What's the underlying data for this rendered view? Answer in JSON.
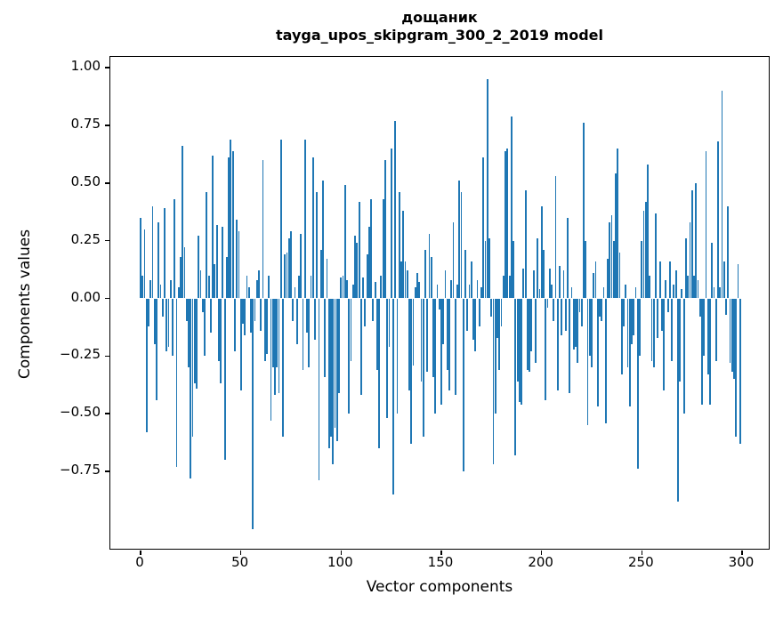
{
  "figure": {
    "title_line1": "дощаник",
    "title_line2": "tayga_upos_skipgram_300_2_2019 model"
  },
  "chart_data": {
    "type": "bar",
    "title": "дощаник — tayga_upos_skipgram_300_2_2019 model",
    "xlabel": "Vector components",
    "ylabel": "Components values",
    "bar_color": "#1f77b4",
    "grid": false,
    "legend": "none",
    "xlim": [
      -15,
      315
    ],
    "ylim": [
      -1.09,
      1.05
    ],
    "xticks": [
      0,
      50,
      100,
      150,
      200,
      250,
      300
    ],
    "yticks": [
      1.0,
      0.75,
      0.5,
      0.25,
      0.0,
      -0.25,
      -0.5,
      -0.75
    ],
    "x_start_index": 0,
    "values": [
      0.35,
      0.1,
      0.3,
      -0.58,
      -0.12,
      0.08,
      0.4,
      -0.2,
      -0.44,
      0.33,
      0.06,
      -0.08,
      0.39,
      -0.23,
      -0.21,
      0.08,
      -0.25,
      0.43,
      -0.73,
      0.05,
      0.18,
      0.66,
      0.22,
      -0.1,
      -0.3,
      -0.78,
      -0.6,
      -0.37,
      -0.39,
      0.27,
      0.12,
      -0.06,
      -0.25,
      0.46,
      0.1,
      -0.15,
      0.62,
      0.15,
      0.32,
      -0.27,
      -0.37,
      0.31,
      -0.7,
      0.18,
      0.61,
      0.69,
      0.64,
      -0.23,
      0.34,
      0.29,
      -0.4,
      -0.11,
      -0.16,
      0.1,
      0.05,
      -0.15,
      -1.0,
      -0.1,
      0.08,
      0.12,
      -0.14,
      0.6,
      -0.27,
      -0.24,
      0.1,
      -0.53,
      -0.3,
      -0.42,
      -0.3,
      -0.41,
      0.69,
      -0.6,
      0.19,
      0.2,
      0.26,
      0.29,
      -0.1,
      0.05,
      -0.2,
      0.1,
      0.28,
      -0.31,
      0.69,
      -0.15,
      -0.3,
      0.1,
      0.61,
      -0.18,
      0.46,
      -0.79,
      0.21,
      0.51,
      -0.34,
      0.17,
      -0.65,
      -0.6,
      -0.72,
      -0.56,
      -0.62,
      -0.41,
      0.09,
      0.1,
      0.49,
      0.08,
      -0.5,
      -0.27,
      0.06,
      0.27,
      0.24,
      0.42,
      -0.42,
      0.09,
      -0.12,
      0.19,
      0.31,
      0.43,
      -0.1,
      0.07,
      -0.31,
      -0.65,
      0.1,
      0.43,
      0.6,
      -0.52,
      -0.21,
      0.65,
      -0.85,
      0.77,
      -0.5,
      0.46,
      0.16,
      0.38,
      0.16,
      0.12,
      -0.4,
      -0.63,
      -0.29,
      0.05,
      0.11,
      0.07,
      -0.36,
      -0.6,
      0.21,
      -0.32,
      0.28,
      0.18,
      -0.34,
      -0.5,
      0.06,
      -0.05,
      -0.46,
      -0.2,
      0.12,
      -0.31,
      -0.4,
      0.08,
      0.33,
      -0.42,
      0.06,
      0.51,
      0.46,
      -0.75,
      0.21,
      -0.14,
      0.06,
      0.16,
      -0.18,
      -0.23,
      0.08,
      -0.12,
      0.05,
      0.61,
      0.25,
      0.95,
      0.26,
      -0.08,
      -0.72,
      -0.5,
      -0.17,
      -0.31,
      -0.12,
      0.1,
      0.64,
      0.65,
      0.1,
      0.79,
      0.25,
      -0.68,
      -0.36,
      -0.45,
      -0.46,
      0.13,
      0.47,
      -0.31,
      -0.32,
      -0.23,
      0.12,
      -0.28,
      0.26,
      0.04,
      0.4,
      0.21,
      -0.44,
      -0.04,
      0.13,
      0.06,
      -0.1,
      0.53,
      -0.4,
      0.14,
      -0.16,
      0.12,
      -0.14,
      0.35,
      -0.41,
      0.05,
      -0.22,
      -0.21,
      -0.28,
      -0.06,
      -0.12,
      0.76,
      0.25,
      -0.55,
      -0.25,
      -0.3,
      0.11,
      0.16,
      -0.47,
      -0.08,
      -0.1,
      0.05,
      -0.54,
      0.17,
      0.33,
      0.36,
      0.25,
      0.54,
      0.65,
      0.2,
      -0.33,
      -0.12,
      0.06,
      -0.3,
      -0.47,
      -0.2,
      -0.16,
      0.05,
      -0.74,
      -0.25,
      0.25,
      0.38,
      0.42,
      0.58,
      0.1,
      -0.27,
      -0.3,
      0.37,
      -0.17,
      0.16,
      -0.14,
      -0.4,
      0.08,
      -0.06,
      0.16,
      -0.27,
      0.06,
      0.12,
      -0.88,
      -0.36,
      0.04,
      -0.5,
      0.26,
      0.1,
      0.33,
      0.47,
      0.1,
      0.5,
      0.08,
      -0.08,
      -0.46,
      -0.25,
      0.64,
      -0.33,
      -0.46,
      0.24,
      0.05,
      -0.27,
      0.68,
      0.05,
      0.9,
      0.16,
      -0.07,
      0.4,
      -0.28,
      -0.32,
      -0.35,
      -0.6,
      0.15,
      -0.63
    ]
  }
}
